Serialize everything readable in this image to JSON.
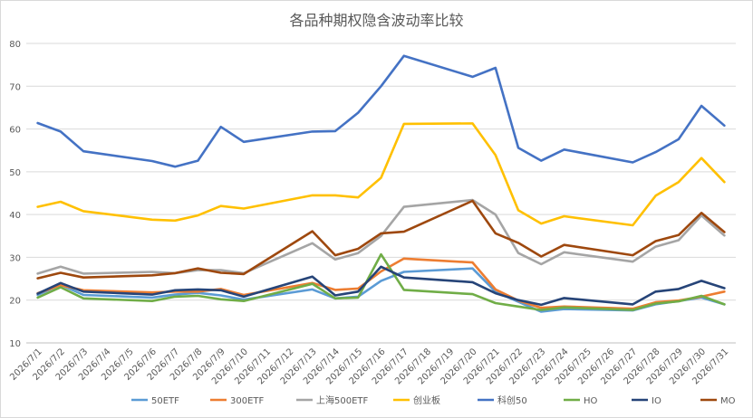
{
  "chart_data": {
    "type": "line",
    "title": "各品种期权隐含波动率比较",
    "xlabel": "",
    "ylabel": "",
    "ylim": [
      10,
      80
    ],
    "yticks": [
      10,
      20,
      30,
      40,
      50,
      60,
      70,
      80
    ],
    "grid": true,
    "legend_position": "bottom",
    "x": [
      "2026/7/1",
      "2026/7/2",
      "2026/7/3",
      "2026/7/4",
      "2026/7/5",
      "2026/7/6",
      "2026/7/7",
      "2026/7/8",
      "2026/7/9",
      "2026/7/10",
      "2026/7/11",
      "2026/7/12",
      "2026/7/13",
      "2026/7/14",
      "2026/7/15",
      "2026/7/16",
      "2026/7/17",
      "2026/7/18",
      "2026/7/19",
      "2026/7/20",
      "2026/7/21",
      "2026/7/22",
      "2026/7/23",
      "2026/7/24",
      "2026/7/25",
      "2026/7/26",
      "2026/7/27",
      "2026/7/28",
      "2026/7/29",
      "2026/7/30",
      "2026/7/31"
    ],
    "series": [
      {
        "name": "50ETF",
        "color": "#5b9bd5",
        "points": [
          [
            0,
            21.2
          ],
          [
            1,
            23.6
          ],
          [
            2,
            21.2
          ],
          [
            5,
            20.6
          ],
          [
            6,
            21.3
          ],
          [
            7,
            21.7
          ],
          [
            8,
            21.1
          ],
          [
            9,
            20.1
          ],
          [
            12,
            22.5
          ],
          [
            13,
            20.4
          ],
          [
            14,
            20.8
          ],
          [
            15,
            24.5
          ],
          [
            16,
            26.6
          ],
          [
            19,
            27.4
          ],
          [
            20,
            22.0
          ],
          [
            21,
            19.6
          ],
          [
            22,
            17.3
          ],
          [
            23,
            17.9
          ],
          [
            26,
            17.6
          ],
          [
            27,
            19.0
          ],
          [
            28,
            19.8
          ],
          [
            29,
            20.6
          ],
          [
            30,
            19.0
          ]
        ]
      },
      {
        "name": "300ETF",
        "color": "#ed7d31",
        "points": [
          [
            0,
            21.6
          ],
          [
            1,
            23.5
          ],
          [
            2,
            22.3
          ],
          [
            5,
            21.8
          ],
          [
            6,
            22.0
          ],
          [
            7,
            22.0
          ],
          [
            8,
            22.6
          ],
          [
            9,
            21.2
          ],
          [
            12,
            24.0
          ],
          [
            13,
            22.4
          ],
          [
            14,
            22.7
          ],
          [
            15,
            26.7
          ],
          [
            16,
            29.7
          ],
          [
            19,
            28.8
          ],
          [
            20,
            22.5
          ],
          [
            21,
            19.9
          ],
          [
            22,
            18.2
          ],
          [
            23,
            18.5
          ],
          [
            26,
            18.0
          ],
          [
            27,
            19.5
          ],
          [
            28,
            19.9
          ],
          [
            29,
            20.8
          ],
          [
            30,
            22.0
          ]
        ]
      },
      {
        "name": "上海500ETF",
        "color": "#a5a5a5",
        "points": [
          [
            0,
            26.2
          ],
          [
            1,
            27.8
          ],
          [
            2,
            26.2
          ],
          [
            5,
            26.6
          ],
          [
            6,
            26.3
          ],
          [
            7,
            27.0
          ],
          [
            8,
            27.0
          ],
          [
            9,
            26.3
          ],
          [
            12,
            33.3
          ],
          [
            13,
            29.5
          ],
          [
            14,
            31.0
          ],
          [
            15,
            35.0
          ],
          [
            16,
            41.8
          ],
          [
            19,
            43.4
          ],
          [
            20,
            40.0
          ],
          [
            21,
            31.0
          ],
          [
            22,
            28.4
          ],
          [
            23,
            31.2
          ],
          [
            26,
            29.0
          ],
          [
            27,
            32.5
          ],
          [
            28,
            34.0
          ],
          [
            29,
            39.8
          ],
          [
            30,
            35.1
          ]
        ]
      },
      {
        "name": "创业板",
        "color": "#ffc000",
        "points": [
          [
            0,
            41.8
          ],
          [
            1,
            43.0
          ],
          [
            2,
            40.8
          ],
          [
            5,
            38.8
          ],
          [
            6,
            38.6
          ],
          [
            7,
            39.8
          ],
          [
            8,
            42.0
          ],
          [
            9,
            41.4
          ],
          [
            12,
            44.5
          ],
          [
            13,
            44.5
          ],
          [
            14,
            44.0
          ],
          [
            15,
            48.6
          ],
          [
            16,
            61.2
          ],
          [
            19,
            61.3
          ],
          [
            20,
            53.9
          ],
          [
            21,
            41.0
          ],
          [
            22,
            37.9
          ],
          [
            23,
            39.6
          ],
          [
            26,
            37.5
          ],
          [
            27,
            44.4
          ],
          [
            28,
            47.6
          ],
          [
            29,
            53.2
          ],
          [
            30,
            47.6
          ]
        ]
      },
      {
        "name": "科创50",
        "color": "#4472c4",
        "points": [
          [
            0,
            61.4
          ],
          [
            1,
            59.4
          ],
          [
            2,
            54.8
          ],
          [
            5,
            52.5
          ],
          [
            6,
            51.2
          ],
          [
            7,
            52.6
          ],
          [
            8,
            60.5
          ],
          [
            9,
            57.0
          ],
          [
            12,
            59.4
          ],
          [
            13,
            59.5
          ],
          [
            14,
            63.8
          ],
          [
            15,
            70.0
          ],
          [
            16,
            77.1
          ],
          [
            19,
            72.2
          ],
          [
            20,
            74.3
          ],
          [
            21,
            55.6
          ],
          [
            22,
            52.6
          ],
          [
            23,
            55.2
          ],
          [
            26,
            52.2
          ],
          [
            27,
            54.6
          ],
          [
            28,
            57.6
          ],
          [
            29,
            65.4
          ],
          [
            30,
            60.8
          ]
        ]
      },
      {
        "name": "HO",
        "color": "#70ad47",
        "points": [
          [
            0,
            20.6
          ],
          [
            1,
            23.0
          ],
          [
            2,
            20.4
          ],
          [
            5,
            19.8
          ],
          [
            6,
            20.8
          ],
          [
            7,
            21.0
          ],
          [
            8,
            20.2
          ],
          [
            9,
            19.8
          ],
          [
            12,
            23.8
          ],
          [
            13,
            20.4
          ],
          [
            14,
            20.6
          ],
          [
            15,
            30.7
          ],
          [
            16,
            22.4
          ],
          [
            19,
            21.4
          ],
          [
            20,
            19.3
          ],
          [
            21,
            18.5
          ],
          [
            22,
            17.7
          ],
          [
            23,
            18.3
          ],
          [
            26,
            17.7
          ],
          [
            27,
            19.2
          ],
          [
            28,
            19.7
          ],
          [
            29,
            21.0
          ],
          [
            30,
            19.0
          ]
        ]
      },
      {
        "name": "IO",
        "color": "#264478",
        "points": [
          [
            0,
            21.5
          ],
          [
            1,
            24.0
          ],
          [
            2,
            22.0
          ],
          [
            5,
            21.3
          ],
          [
            6,
            22.3
          ],
          [
            7,
            22.5
          ],
          [
            8,
            22.3
          ],
          [
            9,
            20.8
          ],
          [
            12,
            25.5
          ],
          [
            13,
            21.1
          ],
          [
            14,
            22.0
          ],
          [
            15,
            27.8
          ],
          [
            16,
            25.3
          ],
          [
            19,
            24.2
          ],
          [
            20,
            21.6
          ],
          [
            21,
            20.0
          ],
          [
            22,
            18.9
          ],
          [
            23,
            20.5
          ],
          [
            26,
            19.0
          ],
          [
            27,
            22.0
          ],
          [
            28,
            22.6
          ],
          [
            29,
            24.5
          ],
          [
            30,
            22.8
          ]
        ]
      },
      {
        "name": "MO",
        "color": "#9e480e",
        "points": [
          [
            0,
            25.1
          ],
          [
            1,
            26.4
          ],
          [
            2,
            25.3
          ],
          [
            5,
            25.8
          ],
          [
            6,
            26.3
          ],
          [
            7,
            27.4
          ],
          [
            8,
            26.4
          ],
          [
            9,
            26.1
          ],
          [
            12,
            36.1
          ],
          [
            13,
            30.5
          ],
          [
            14,
            32.0
          ],
          [
            15,
            35.6
          ],
          [
            16,
            36.0
          ],
          [
            19,
            43.2
          ],
          [
            20,
            35.6
          ],
          [
            21,
            33.4
          ],
          [
            22,
            30.2
          ],
          [
            23,
            32.9
          ],
          [
            26,
            30.5
          ],
          [
            27,
            33.8
          ],
          [
            28,
            35.2
          ],
          [
            29,
            40.4
          ],
          [
            30,
            35.9
          ]
        ]
      }
    ]
  }
}
